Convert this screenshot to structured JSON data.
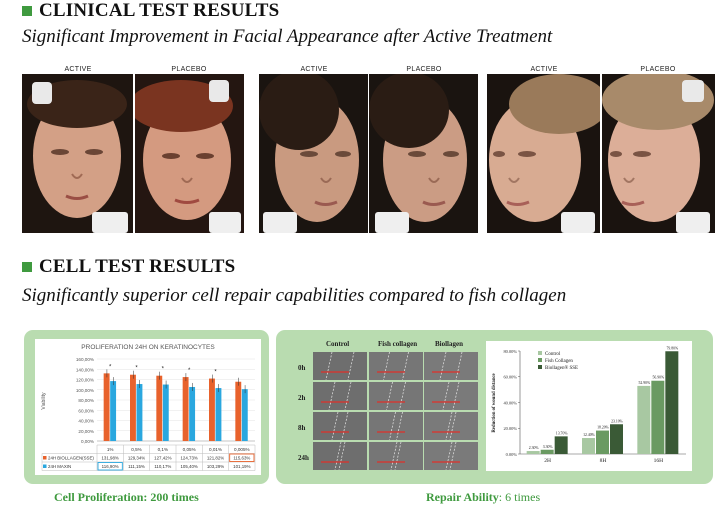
{
  "clinical": {
    "heading": "CLINICAL TEST RESULTS",
    "subtitle": "Significant Improvement in Facial Appearance after Active Treatment",
    "photo_labels": [
      "ACTIVE",
      "PLACEBO",
      "ACTIVE",
      "PLACEBO",
      "ACTIVE",
      "PLACEBO"
    ]
  },
  "cell": {
    "heading": "CELL TEST RESULTS",
    "subtitle": "Significantly superior cell repair capabilities compared to fish collagen"
  },
  "proliferation": {
    "caption": "Cell Proliferation: 200 times",
    "chart_data": {
      "type": "bar",
      "title": "PROLIFERATION 24H ON KERATINOCYTES",
      "ylabel": "Viability",
      "ylim": [
        0,
        160
      ],
      "yticks": [
        "0,00%",
        "20,00%",
        "40,00%",
        "60,00%",
        "80,00%",
        "100,00%",
        "120,00%",
        "140,00%",
        "160,00%"
      ],
      "categories": [
        "1%",
        "0,5%",
        "0,1%",
        "0,05%",
        "0,01%",
        "0,005%"
      ],
      "significance_markers": [
        "*",
        "*",
        "*",
        "*",
        "*",
        ""
      ],
      "series": [
        {
          "name": "24H BIOLLAGEN(SSE)",
          "color": "#e8622c",
          "values": [
            131.98,
            129.34,
            127.42,
            124.73,
            121.82,
            115.63
          ],
          "labels": [
            "131,98%",
            "129,34%",
            "127,42%",
            "124,73%",
            "121,82%",
            "115,63%"
          ]
        },
        {
          "name": "24H MAXIN",
          "color": "#2aa7df",
          "values": [
            116.9,
            111.15,
            110.17,
            105.4,
            103.29,
            101.19
          ],
          "labels": [
            "116,90%",
            "111,15%",
            "110,17%",
            "105,40%",
            "103,29%",
            "101,19%"
          ]
        }
      ]
    }
  },
  "repair": {
    "caption_bold": "Repair Ability",
    "caption_rest": ": 6 times",
    "grid": {
      "columns": [
        "Control",
        "Fish collagen",
        "Biollagen"
      ],
      "rows": [
        "0h",
        "2h",
        "8h",
        "24h"
      ]
    },
    "chart_data": {
      "type": "bar",
      "ylabel": "Reduction of wound distance",
      "ylim": [
        0,
        80
      ],
      "yticks": [
        "0.00%",
        "20.00%",
        "40.00%",
        "60.00%",
        "80.00%"
      ],
      "categories": [
        "2H",
        "8H",
        "16H"
      ],
      "series": [
        {
          "name": "Control",
          "color": "#a8c8a2",
          "values": [
            2.3,
            12.4,
            52.9
          ],
          "labels": [
            "2.30%",
            "12.40%",
            "52.90%"
          ]
        },
        {
          "name": "Fish Collagen",
          "color": "#6a9a62",
          "values": [
            3.3,
            18.2,
            56.9
          ],
          "labels": [
            "3.30%",
            "18.20%",
            "56.90%"
          ]
        },
        {
          "name": "Biollagen® SSE",
          "color": "#3a5a36",
          "values": [
            13.7,
            23.1,
            79.8
          ],
          "labels": [
            "13.70%",
            "23.10%",
            "79.80%"
          ]
        }
      ]
    }
  }
}
